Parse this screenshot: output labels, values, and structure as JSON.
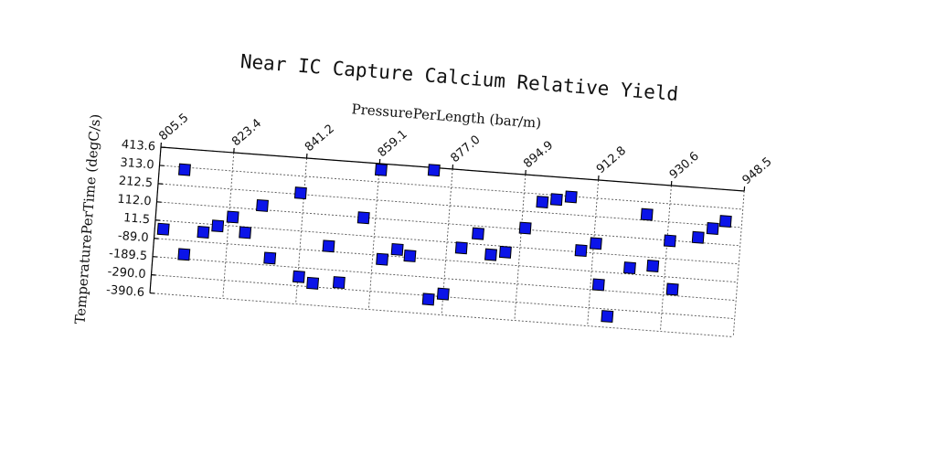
{
  "chart_data": {
    "type": "scatter",
    "title": "Near IC Capture Calcium Relative Yield",
    "xlabel": "PressurePerLength (bar/m)",
    "ylabel": "TemperaturePerTime (degC/s)",
    "xlim": [
      805.5,
      948.5
    ],
    "ylim": [
      -390.6,
      413.6
    ],
    "x_ticks": [
      "805.5",
      "823.4",
      "841.2",
      "859.1",
      "877.0",
      "894.9",
      "912.8",
      "930.6",
      "948.5"
    ],
    "y_ticks": [
      "413.6",
      "313.0",
      "212.5",
      "112.0",
      "11.5",
      "-89.0",
      "-189.5",
      "-290.0",
      "-390.6"
    ],
    "grid": true,
    "marker": "square",
    "marker_color": "#0b14e8",
    "series": [
      {
        "points": [
          {
            "x": 807.6,
            "y": -35
          },
          {
            "x": 811.7,
            "y": 300
          },
          {
            "x": 813.1,
            "y": -165
          },
          {
            "x": 817.4,
            "y": -35
          },
          {
            "x": 820.8,
            "y": 5
          },
          {
            "x": 824.3,
            "y": 60
          },
          {
            "x": 827.6,
            "y": -20
          },
          {
            "x": 831.3,
            "y": 135
          },
          {
            "x": 834.1,
            "y": -150
          },
          {
            "x": 840.4,
            "y": 220
          },
          {
            "x": 841.5,
            "y": -240
          },
          {
            "x": 845.0,
            "y": -270
          },
          {
            "x": 848.2,
            "y": -60
          },
          {
            "x": 851.4,
            "y": -255
          },
          {
            "x": 856.2,
            "y": 110
          },
          {
            "x": 859.6,
            "y": 380
          },
          {
            "x": 861.5,
            "y": -110
          },
          {
            "x": 865.0,
            "y": -50
          },
          {
            "x": 868.2,
            "y": -80
          },
          {
            "x": 872.5,
            "y": 400
          },
          {
            "x": 873.5,
            "y": -310
          },
          {
            "x": 877.0,
            "y": -275
          },
          {
            "x": 880.6,
            "y": -15
          },
          {
            "x": 884.4,
            "y": 70
          },
          {
            "x": 887.9,
            "y": -40
          },
          {
            "x": 891.4,
            "y": -20
          },
          {
            "x": 895.8,
            "y": 120
          },
          {
            "x": 899.5,
            "y": 270
          },
          {
            "x": 902.9,
            "y": 290
          },
          {
            "x": 906.4,
            "y": 310
          },
          {
            "x": 909.8,
            "y": 20
          },
          {
            "x": 913.3,
            "y": 65
          },
          {
            "x": 914.7,
            "y": -160
          },
          {
            "x": 917.4,
            "y": -330
          },
          {
            "x": 922.0,
            "y": -55
          },
          {
            "x": 925.2,
            "y": 245
          },
          {
            "x": 927.6,
            "y": -35
          },
          {
            "x": 931.3,
            "y": 110
          },
          {
            "x": 932.8,
            "y": -155
          },
          {
            "x": 938.1,
            "y": 140
          },
          {
            "x": 941.5,
            "y": 195
          },
          {
            "x": 944.5,
            "y": 240
          }
        ]
      }
    ]
  }
}
